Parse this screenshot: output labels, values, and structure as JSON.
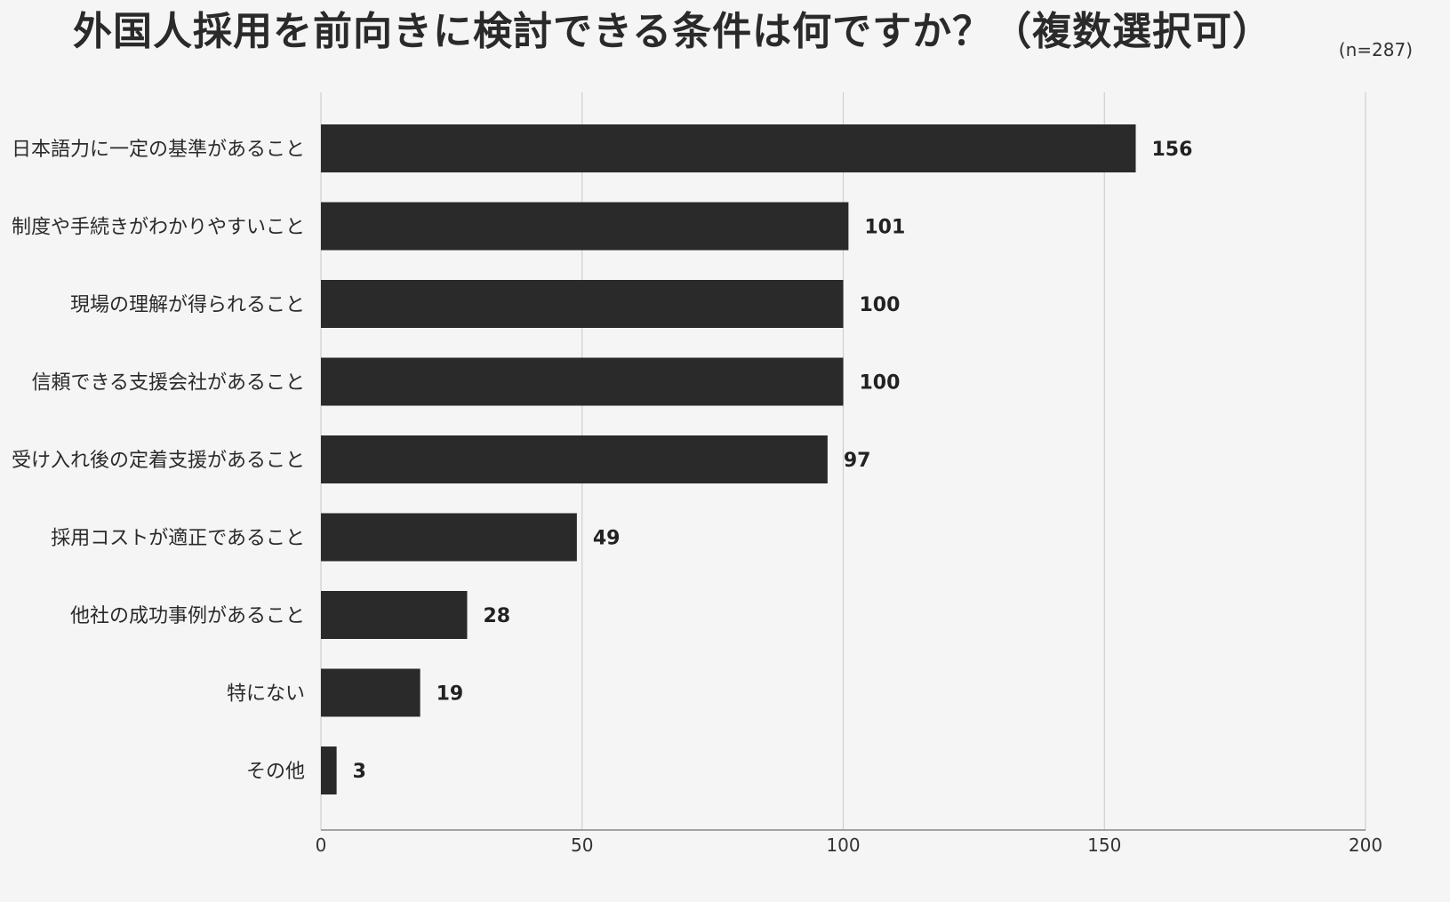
{
  "chart_data": {
    "type": "bar",
    "orientation": "horizontal",
    "title": "外国人採用を前向きに検討できる条件は何ですか？（複数選択可）",
    "note": "(n=287)",
    "categories": [
      "日本語力に一定の基準があること",
      "制度や手続きがわかりやすいこと",
      "現場の理解が得られること",
      "信頼できる支援会社があること",
      "受け入れ後の定着支援があること",
      "採用コストが適正であること",
      "他社の成功事例があること",
      "特にない",
      "その他"
    ],
    "values": [
      156,
      101,
      100,
      100,
      97,
      49,
      28,
      19,
      3
    ],
    "xlim": [
      0,
      200
    ],
    "xticks": [
      0,
      50,
      100,
      150,
      200
    ],
    "grid": true,
    "bar_color": "#2a2a2a",
    "grid_color": "#cfcfcf",
    "axis_color": "#888888"
  }
}
